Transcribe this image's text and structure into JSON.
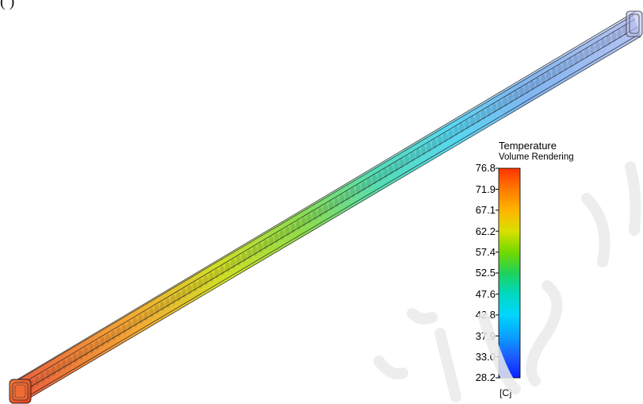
{
  "header_fragment": "(     )",
  "legend": {
    "title": "Temperature",
    "subtitle": "Volume Rendering",
    "unit": "[C]",
    "ticks": [
      "76.8",
      "71.9",
      "67.1",
      "62.2",
      "57.4",
      "52.5",
      "47.6",
      "42.8",
      "37.9",
      "33.0",
      "28.2"
    ],
    "colors": {
      "top": "#ff3f00",
      "orange": "#ffa500",
      "yellow": "#e6e600",
      "green": "#33cc33",
      "cyan": "#00e6e6",
      "blue": "#1e64ff",
      "bottom": "#0000ff"
    }
  },
  "duct": {
    "hot_color": "#e84a1c",
    "mid_color": "#9ae000",
    "cool_color": "#30d8e8",
    "cold_color": "#7a9ae8",
    "outline_color": "#222222"
  }
}
